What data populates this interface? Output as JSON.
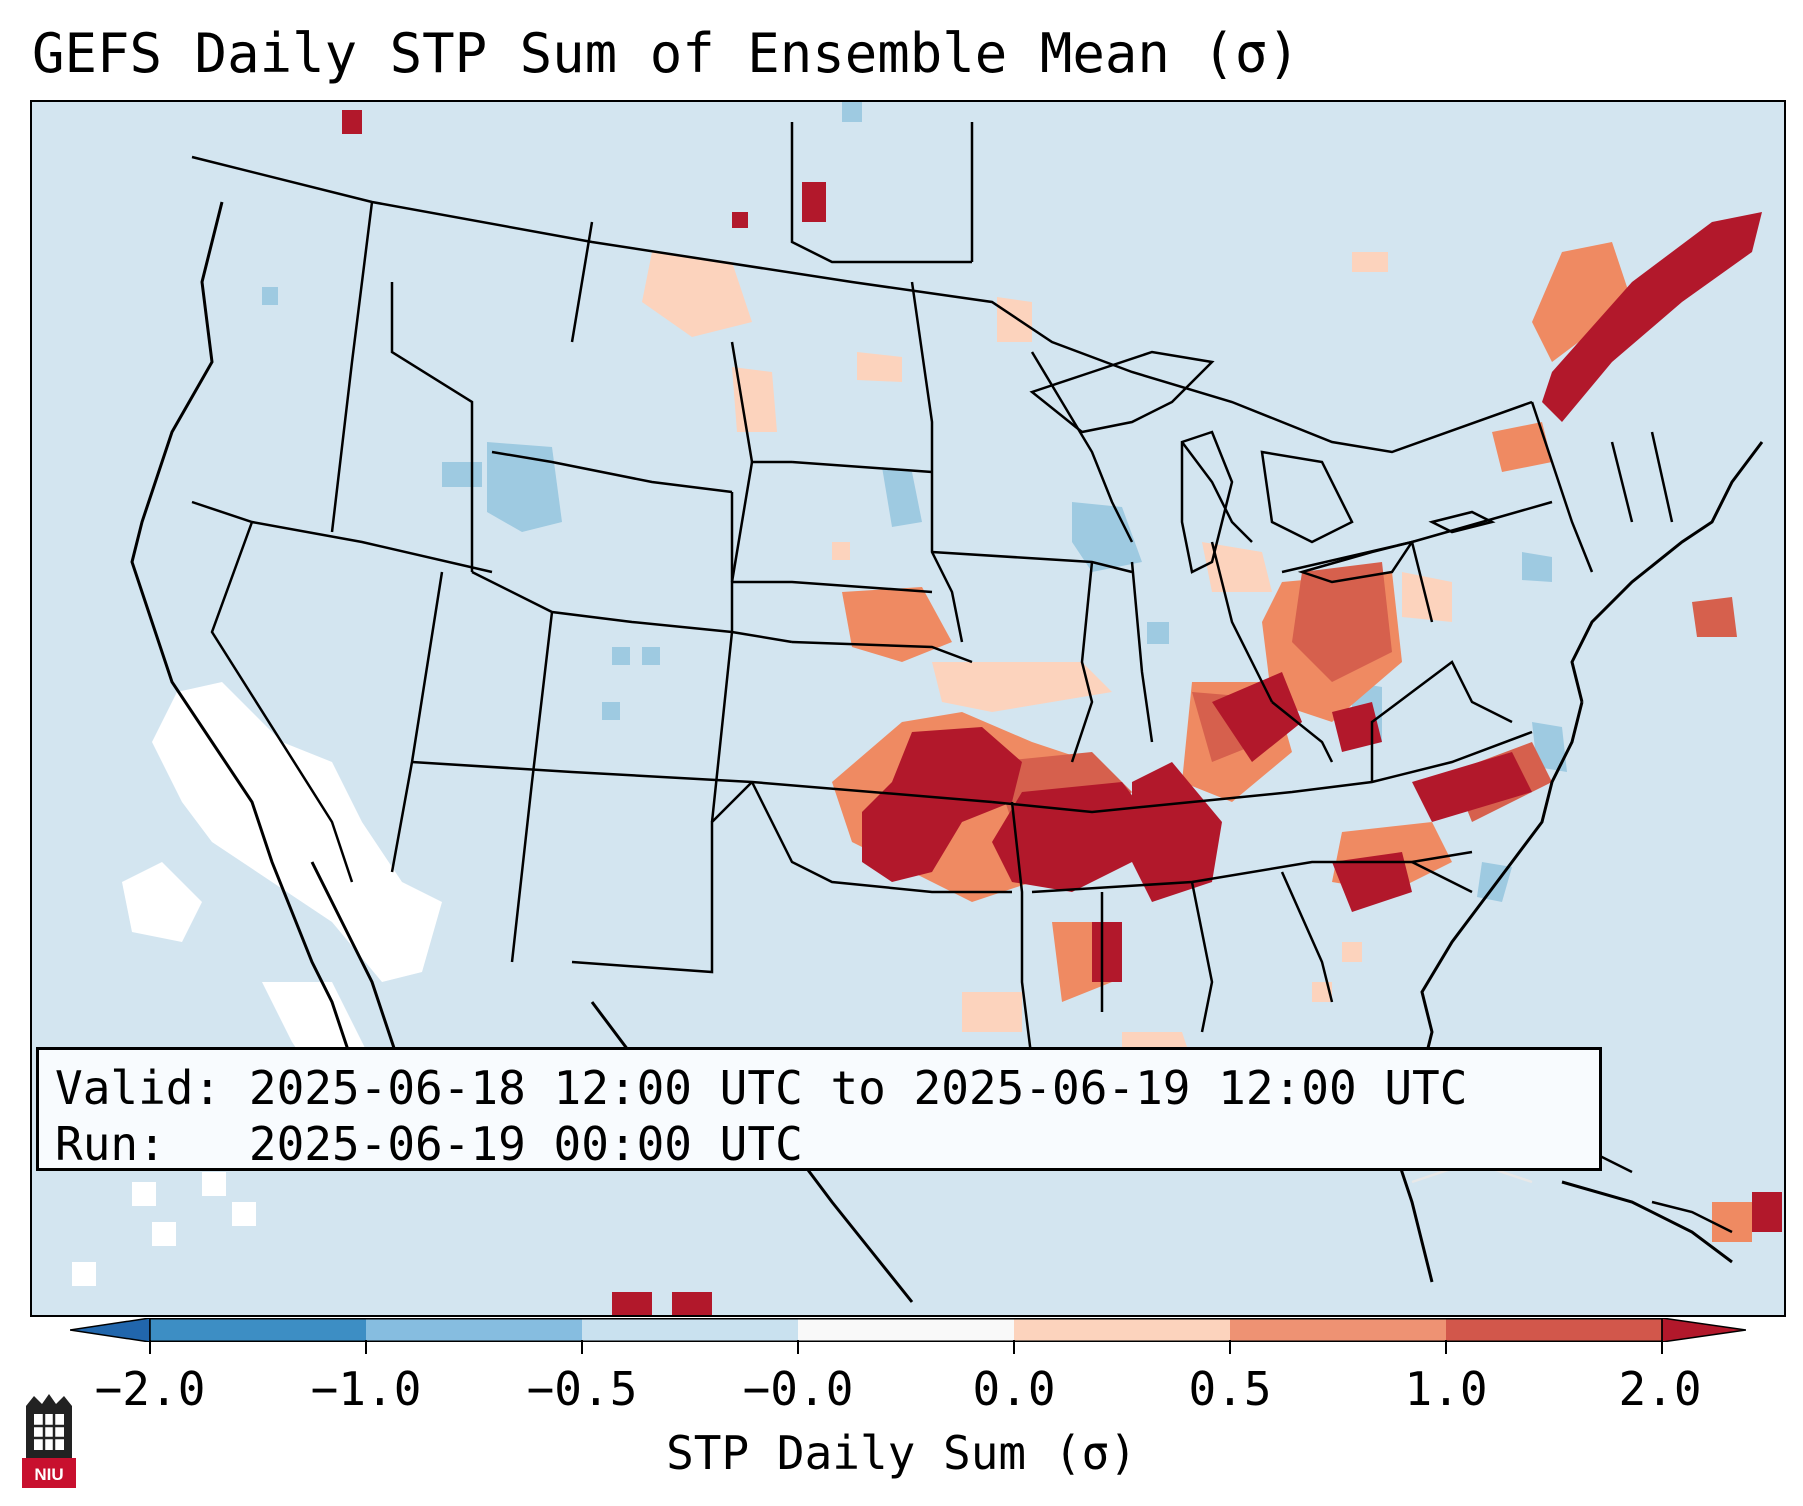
{
  "title": "GEFS Daily STP Sum of Ensemble Mean (σ)",
  "valid_box": {
    "valid_label": "Valid:",
    "valid_text": "2025-06-18 12:00 UTC to 2025-06-19 12:00 UTC",
    "run_label": "Run:",
    "run_text": "2025-06-19 00:00 UTC"
  },
  "colorbar": {
    "label": "STP Daily Sum (σ)",
    "ticks": [
      "−2.0",
      "−1.0",
      "−0.5",
      "−0.0",
      "0.0",
      "0.5",
      "1.0",
      "2.0"
    ],
    "segment_colors": [
      "#3d8ec4",
      "#86bde0",
      "#c9e1ef",
      "#f9f9f9",
      "#fcd3bd",
      "#ee9273",
      "#d2574b",
      "#b2182b"
    ],
    "extend_colors": {
      "low": "#2166ac",
      "high": "#b2182b"
    }
  },
  "logo": {
    "text": "NIU"
  },
  "colors": {
    "background": "#d3e5f0",
    "white_bin": "#ffffff",
    "light_blue_bin": "#9ecae1",
    "peach_bin": "#fcd3bd",
    "salmon_bin": "#ef8a62",
    "red_bin": "#d6604d",
    "dark_red_bin": "#b2182b"
  }
}
